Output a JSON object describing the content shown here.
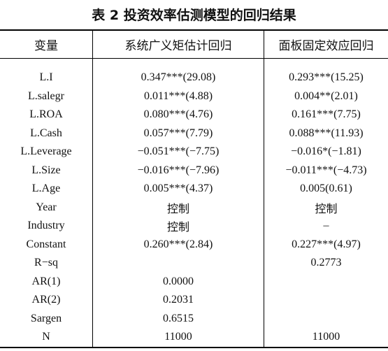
{
  "title": "表 2  投资效率估测模型的回归结果",
  "table": {
    "header": [
      "变量",
      "系统广义矩估计回归",
      "面板固定效应回归"
    ],
    "rows": [
      [
        "L.I",
        "0.347***(29.08)",
        "0.293***(15.25)"
      ],
      [
        "L.salegr",
        "0.011***(4.88)",
        "0.004**(2.01)"
      ],
      [
        "L.ROA",
        "0.080***(4.76)",
        "0.161***(7.75)"
      ],
      [
        "L.Cash",
        "0.057***(7.79)",
        "0.088***(11.93)"
      ],
      [
        "L.Leverage",
        "−0.051***(−7.75)",
        "−0.016*(−1.81)"
      ],
      [
        "L.Size",
        "−0.016***(−7.96)",
        "−0.011***(−4.73)"
      ],
      [
        "L.Age",
        "0.005***(4.37)",
        "0.005(0.61)"
      ],
      [
        "Year",
        "控制",
        "控制"
      ],
      [
        "Industry",
        "控制",
        "–"
      ],
      [
        "Constant",
        "0.260***(2.84)",
        "0.227***(4.97)"
      ],
      [
        "R−sq",
        null,
        "0.2773"
      ],
      [
        "AR(1)",
        "0.0000",
        null
      ],
      [
        "AR(2)",
        "0.2031",
        null
      ],
      [
        "Sargen",
        "0.6515",
        null
      ],
      [
        "N",
        "11000",
        "11000"
      ]
    ]
  }
}
